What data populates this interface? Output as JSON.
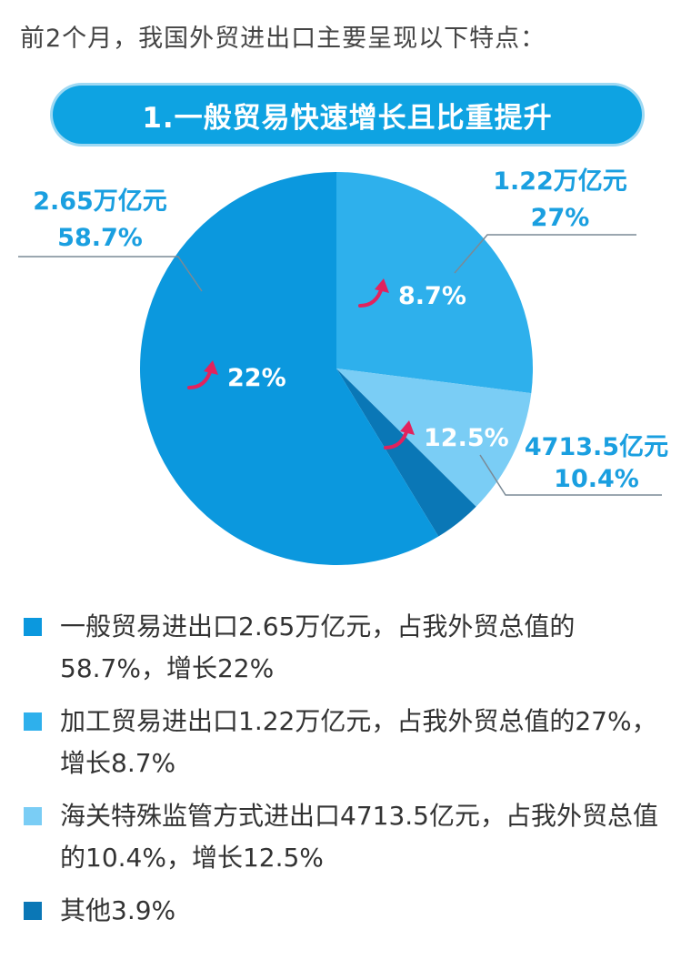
{
  "intro": "前2个月，我国外贸进出口主要呈现以下特点：",
  "banner": "1.一般贸易快速增长且比重提升",
  "colors": {
    "general": "#0b98de",
    "processing": "#2eb0ec",
    "customs": "#7acdf5",
    "other": "#0a77b6",
    "arrow": "#e2225d",
    "callout_text": "#1a9fe0",
    "leader": "#7a8a96"
  },
  "chart_data": {
    "type": "pie",
    "title": "1.一般贸易快速增长且比重提升",
    "slices": [
      {
        "key": "general",
        "share": 58.7,
        "value_label": "2.65万亿元",
        "share_label": "58.7%",
        "growth_label": "22%"
      },
      {
        "key": "processing",
        "share": 27,
        "value_label": "1.22万亿元",
        "share_label": "27%",
        "growth_label": "8.7%"
      },
      {
        "key": "customs",
        "share": 10.4,
        "value_label": "4713.5亿元",
        "share_label": "10.4%",
        "growth_label": "12.5%"
      },
      {
        "key": "other",
        "share": 3.9,
        "value_label": "",
        "share_label": "",
        "growth_label": ""
      }
    ]
  },
  "legend": [
    {
      "key": "general",
      "text": "一般贸易进出口2.65万亿元，占我外贸总值的58.7%，增长22%"
    },
    {
      "key": "processing",
      "text": "加工贸易进出口1.22万亿元，占我外贸总值的27%，增长8.7%"
    },
    {
      "key": "customs",
      "text": "海关特殊监管方式进出口4713.5亿元，占我外贸总值的10.4%，增长12.5%"
    },
    {
      "key": "other",
      "text": "其他3.9%"
    }
  ]
}
